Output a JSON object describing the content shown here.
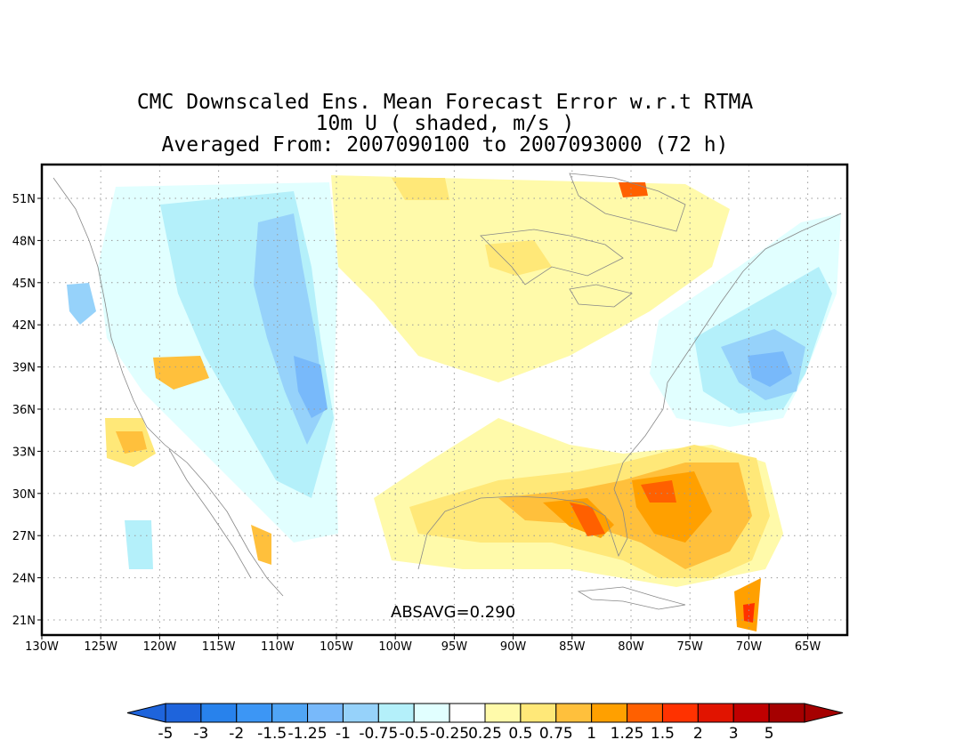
{
  "title": {
    "line1": "CMC Downscaled Ens. Mean Forecast Error w.r.t RTMA",
    "line2": "10m U ( shaded, m/s )",
    "line3": "Averaged From: 2007090100 to 2007093000 (72 h)"
  },
  "map": {
    "lon_ticks": [
      "130W",
      "125W",
      "120W",
      "115W",
      "110W",
      "105W",
      "100W",
      "95W",
      "90W",
      "85W",
      "80W",
      "75W",
      "70W",
      "65W"
    ],
    "lat_ticks": [
      "51N",
      "48N",
      "45N",
      "42N",
      "39N",
      "36N",
      "33N",
      "30N",
      "27N",
      "24N",
      "21N"
    ],
    "lon_range": [
      -130,
      -62
    ],
    "lat_range": [
      20,
      53
    ],
    "grid": "dotted",
    "annotation": "ABSAVG=0.290"
  },
  "colorbar": {
    "labels": [
      "-5",
      "-3",
      "-2",
      "-1.5",
      "-1.25",
      "-1",
      "-0.75",
      "-0.5",
      "-0.25",
      "0.25",
      "0.5",
      "0.75",
      "1",
      "1.25",
      "1.5",
      "2",
      "3",
      "5"
    ],
    "colors": [
      "#1e64dc",
      "#2882ec",
      "#3c96f5",
      "#50a5f5",
      "#78b9fa",
      "#96d2fa",
      "#b4f0fa",
      "#e1ffff",
      "#ffffff",
      "#fffaaa",
      "#ffe878",
      "#ffc03c",
      "#ffa000",
      "#ff6000",
      "#ff3200",
      "#e11400",
      "#c00000",
      "#a50000"
    ],
    "under_color": "#1e64dc",
    "over_color": "#a50000"
  }
}
